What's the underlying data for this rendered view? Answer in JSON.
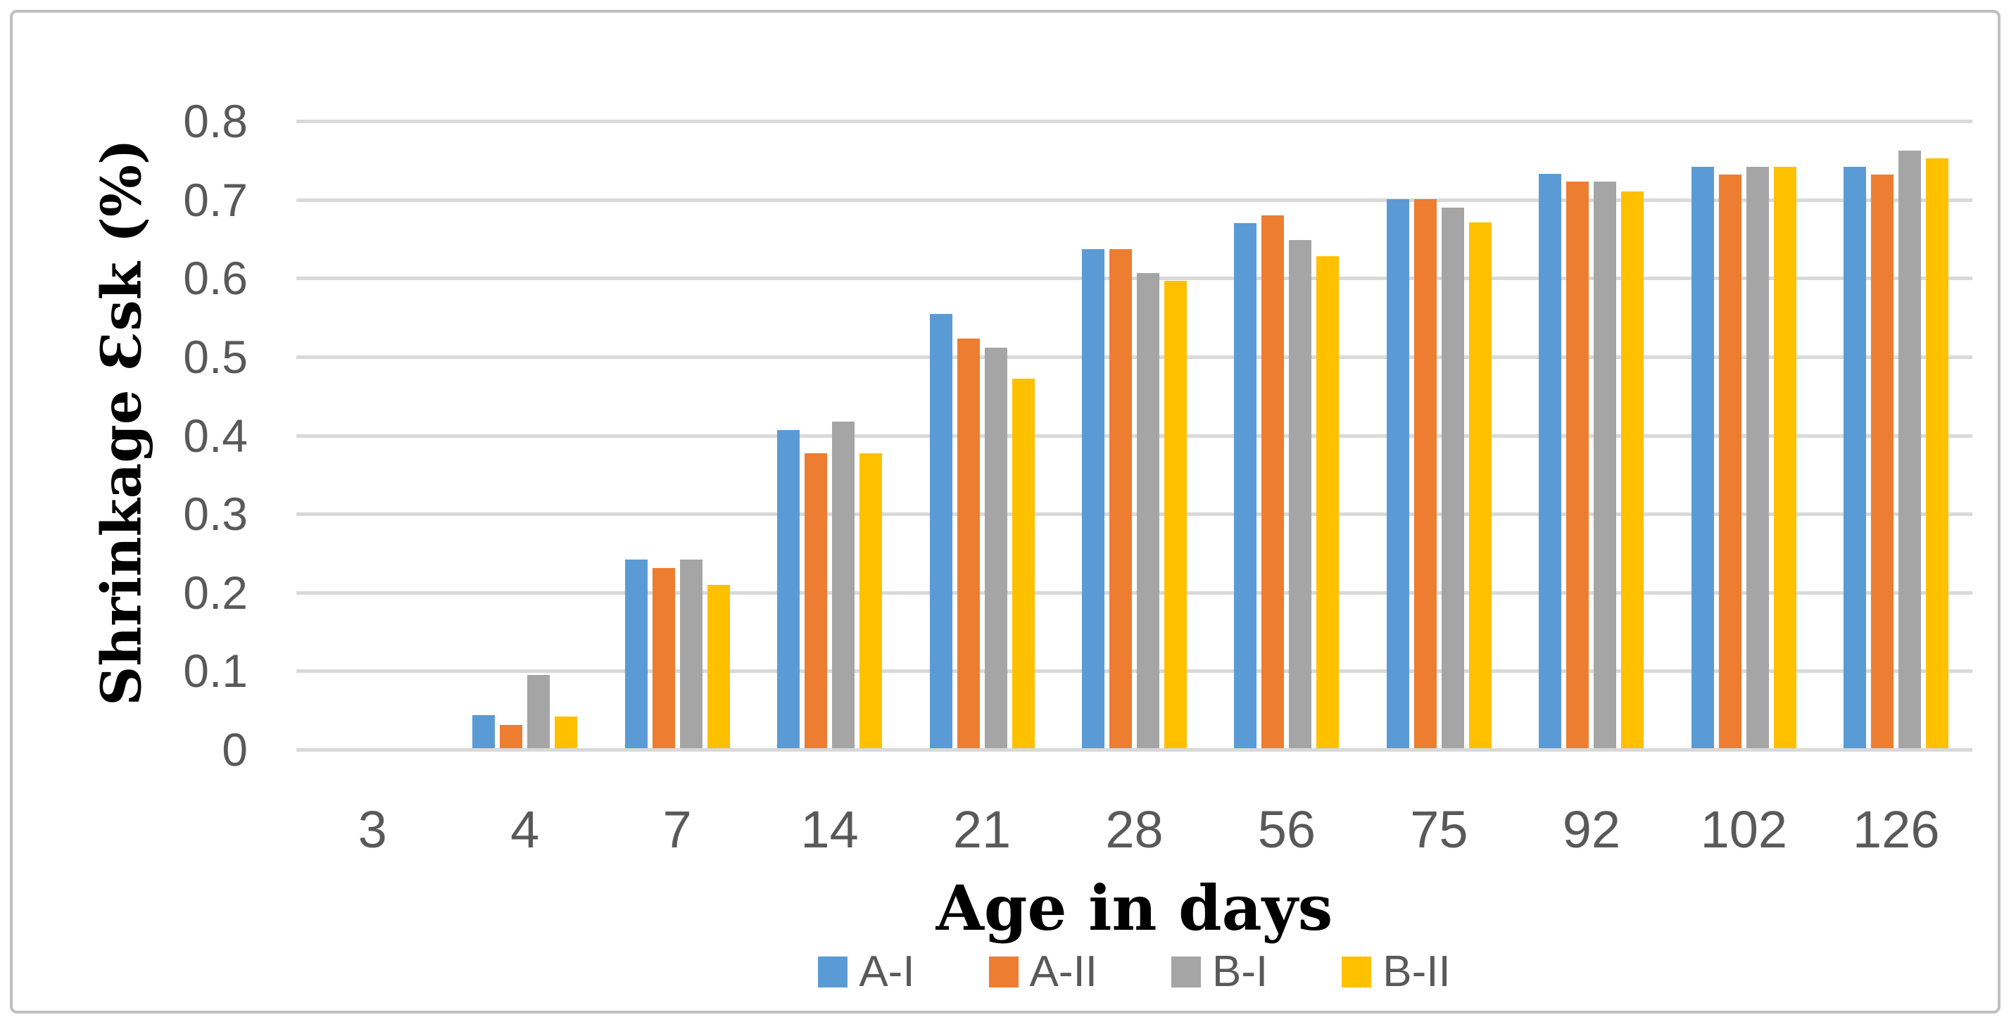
{
  "chart_data": {
    "type": "bar",
    "title": "",
    "xlabel": "Age in days",
    "ylabel": "Shrinkage Ɛsk (%)",
    "categories": [
      "3",
      "4",
      "7",
      "14",
      "21",
      "28",
      "56",
      "75",
      "92",
      "102",
      "126"
    ],
    "series": [
      {
        "name": "A-I",
        "color": "#5B9BD5",
        "values": [
          0,
          0.042,
          0.24,
          0.405,
          0.553,
          0.635,
          0.668,
          0.699,
          0.731,
          0.74,
          0.74
        ]
      },
      {
        "name": "A-II",
        "color": "#ED7D31",
        "values": [
          0,
          0.03,
          0.229,
          0.375,
          0.521,
          0.635,
          0.678,
          0.699,
          0.721,
          0.73,
          0.73
        ]
      },
      {
        "name": "B-I",
        "color": "#A5A5A5",
        "values": [
          0,
          0.093,
          0.24,
          0.416,
          0.51,
          0.605,
          0.647,
          0.688,
          0.721,
          0.74,
          0.761
        ]
      },
      {
        "name": "B-II",
        "color": "#FFC000",
        "values": [
          0,
          0.04,
          0.208,
          0.375,
          0.47,
          0.595,
          0.626,
          0.669,
          0.709,
          0.74,
          0.751
        ]
      }
    ],
    "y_ticks": [
      "0",
      "0.1",
      "0.2",
      "0.3",
      "0.4",
      "0.5",
      "0.6",
      "0.7",
      "0.8"
    ],
    "ylim": [
      0,
      0.8
    ],
    "grid": true,
    "legend_position": "bottom",
    "colors": {
      "gridline": "#d9d9d9",
      "axis_line": "#d9d9d9",
      "tick_label": "#595959",
      "legend_label": "#595959",
      "title_text": "#000000",
      "chart_border": "#bfbfbf",
      "background": "#ffffff"
    }
  }
}
